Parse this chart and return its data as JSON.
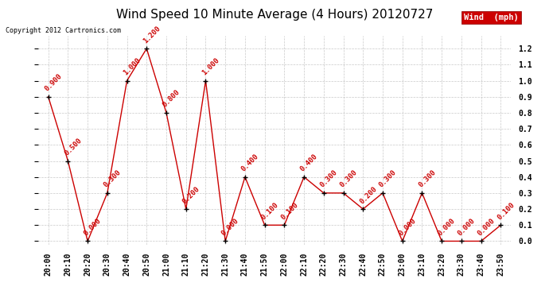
{
  "title": "Wind Speed 10 Minute Average (4 Hours) 20120727",
  "copyright_text": "Copyright 2012 Cartronics.com",
  "legend_label": "Wind  (mph)",
  "times": [
    "20:00",
    "20:10",
    "20:20",
    "20:30",
    "20:40",
    "20:50",
    "21:00",
    "21:10",
    "21:20",
    "21:30",
    "21:40",
    "21:50",
    "22:00",
    "22:10",
    "22:20",
    "22:30",
    "22:40",
    "22:50",
    "23:00",
    "23:10",
    "23:20",
    "23:30",
    "23:40",
    "23:50"
  ],
  "values": [
    0.9,
    0.5,
    0.0,
    0.3,
    1.0,
    1.2,
    0.8,
    0.2,
    1.0,
    0.0,
    0.4,
    0.1,
    0.1,
    0.4,
    0.3,
    0.3,
    0.2,
    0.3,
    0.0,
    0.3,
    0.0,
    0.0,
    0.0,
    0.1
  ],
  "ylim": [
    0.0,
    1.2
  ],
  "yticks": [
    0.0,
    0.1,
    0.2,
    0.3,
    0.4,
    0.5,
    0.6,
    0.7,
    0.8,
    0.9,
    1.0,
    1.1,
    1.2
  ],
  "line_color": "#cc0000",
  "marker_color": "#000000",
  "annotation_color": "#cc0000",
  "legend_bg_color": "#cc0000",
  "legend_text_color": "#ffffff",
  "background_color": "#ffffff",
  "grid_color": "#bbbbbb",
  "title_fontsize": 11,
  "annotation_fontsize": 6.5,
  "copyright_fontsize": 6,
  "tick_fontsize": 7,
  "legend_fontsize": 7.5
}
